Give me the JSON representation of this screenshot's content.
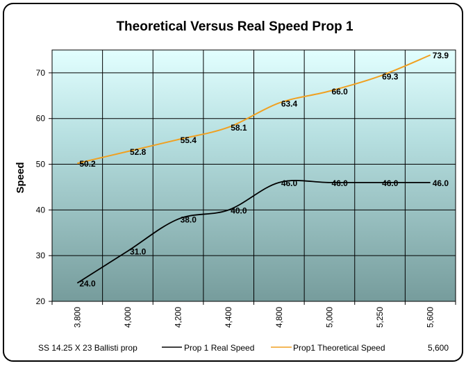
{
  "chart_data": {
    "type": "line",
    "title": "Theoretical Versus Real Speed Prop 1",
    "ylabel": "Speed",
    "xlabel": "",
    "ylim": [
      20,
      75
    ],
    "yticks": [
      20,
      30,
      40,
      50,
      60,
      70
    ],
    "x_tick_labels": [
      "3,800",
      "4,000",
      "4,200",
      "4,400",
      "4,800",
      "5,000",
      "5,250",
      "5,600"
    ],
    "grid": true,
    "legend_position": "bottom",
    "series": [
      {
        "name": "Prop 1 Real Speed",
        "color": "#000000",
        "values": [
          24.0,
          31.0,
          38.0,
          40.0,
          46.0,
          46.0,
          46.0,
          46.0
        ],
        "labels": [
          "24.0",
          "31.0",
          "38.0",
          "40.0",
          "46.0",
          "46.0",
          "46.0",
          "46.0"
        ]
      },
      {
        "name": "Prop1 Theoretical Speed",
        "color": "#f0a020",
        "values": [
          50.2,
          52.8,
          55.4,
          58.1,
          63.4,
          66.0,
          69.3,
          73.9
        ],
        "labels": [
          "50.2",
          "52.8",
          "55.4",
          "58.1",
          "63.4",
          "66.0",
          "69.3",
          "73.9"
        ]
      }
    ]
  },
  "legend": {
    "left_text": "SS 14.25 X 23 Ballisti prop",
    "series1": "Prop 1 Real Speed",
    "series2": "Prop1 Theoretical Speed",
    "right_text": "5,600"
  }
}
